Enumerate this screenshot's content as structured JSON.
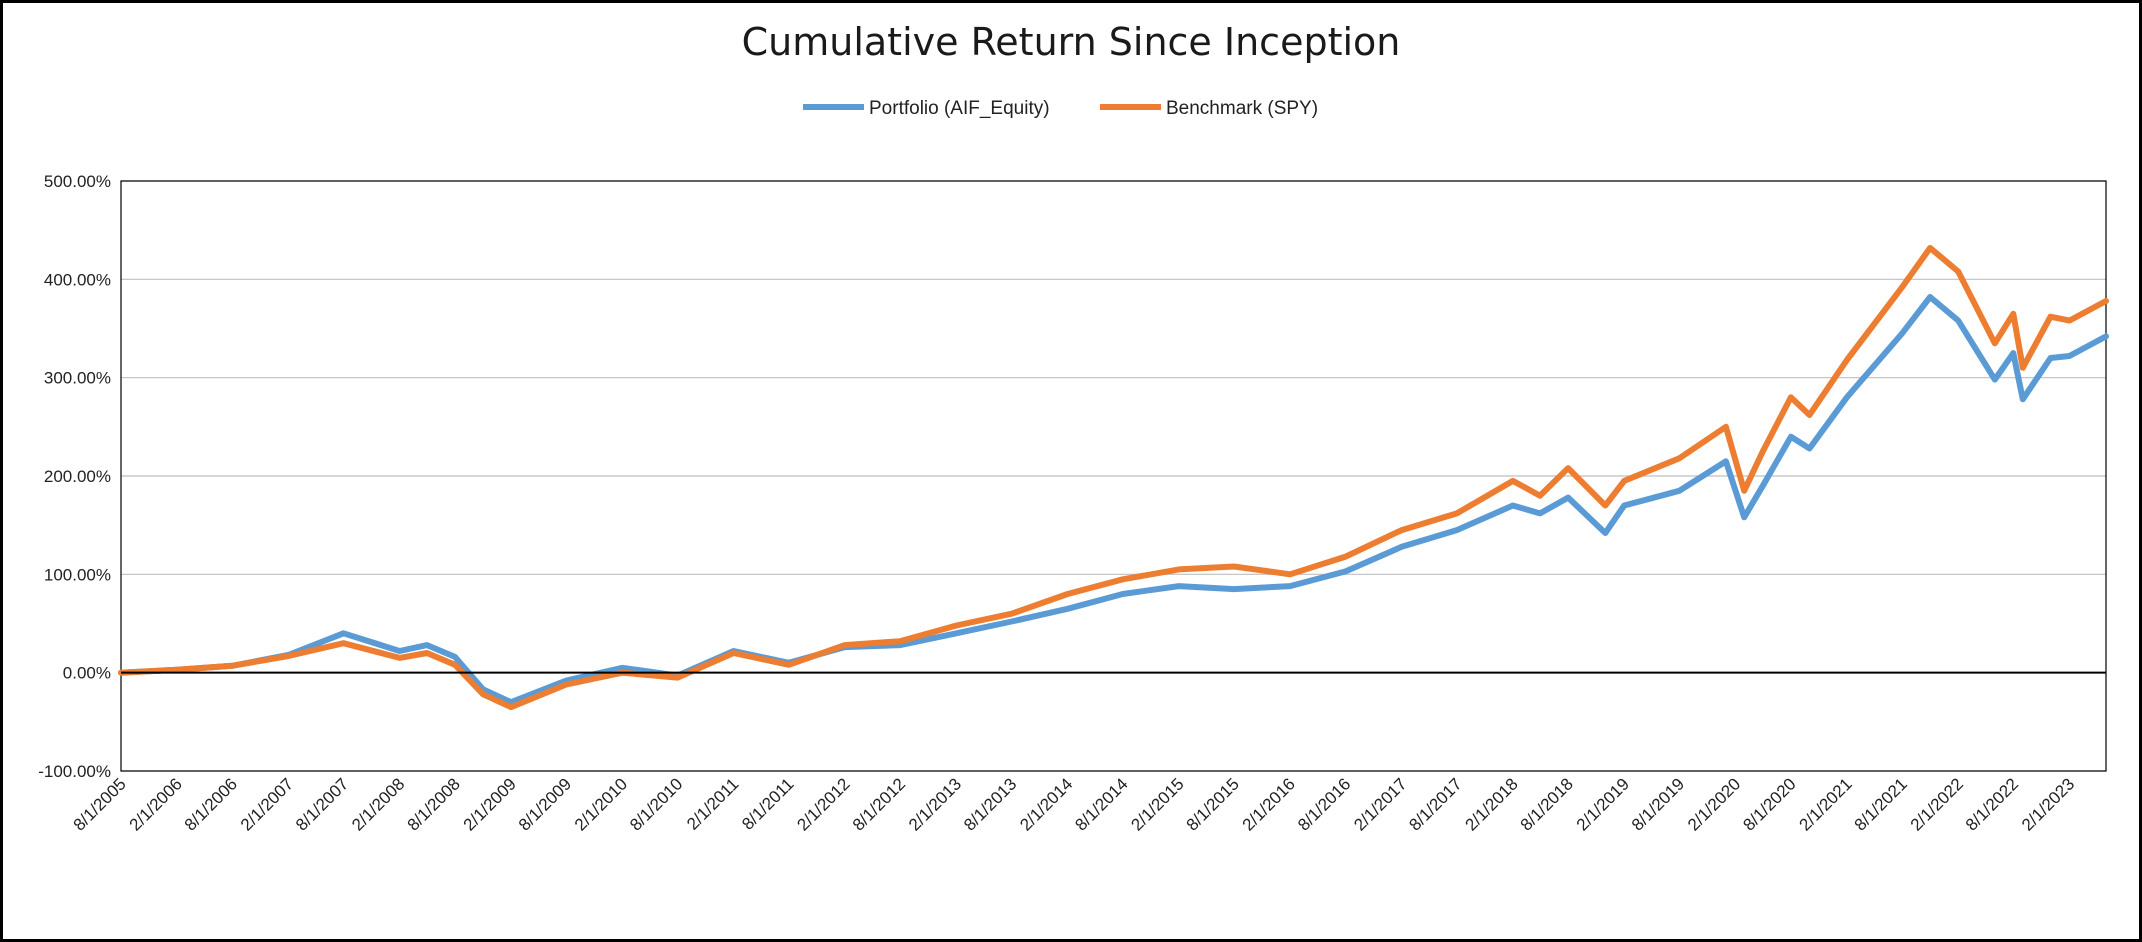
{
  "chart_data": {
    "type": "line",
    "title": "Cumulative Return Since Inception",
    "xlabel": "",
    "ylabel": "",
    "ylim": [
      -100,
      500
    ],
    "y_ticks": [
      "500.00%",
      "400.00%",
      "300.00%",
      "200.00%",
      "100.00%",
      "0.00%",
      "-100.00%"
    ],
    "y_tick_values": [
      500,
      400,
      300,
      200,
      100,
      0,
      -100
    ],
    "x_tick_labels": [
      "8/1/2005",
      "2/1/2006",
      "8/1/2006",
      "2/1/2007",
      "8/1/2007",
      "2/1/2008",
      "8/1/2008",
      "2/1/2009",
      "8/1/2009",
      "2/1/2010",
      "8/1/2010",
      "2/1/2011",
      "8/1/2011",
      "2/1/2012",
      "8/1/2012",
      "2/1/2013",
      "8/1/2013",
      "2/1/2014",
      "8/1/2014",
      "2/1/2015",
      "8/1/2015",
      "2/1/2016",
      "8/1/2016",
      "2/1/2017",
      "8/1/2017",
      "2/1/2018",
      "8/1/2018",
      "2/1/2019",
      "8/1/2019",
      "2/1/2020",
      "8/1/2020",
      "2/1/2021",
      "8/1/2021",
      "2/1/2022",
      "8/1/2022",
      "2/1/2023"
    ],
    "x_end": "6/1/2023",
    "grid": "horizontal",
    "legend_position": "top-center",
    "series": [
      {
        "name": "Portfolio (AIF_Equity)",
        "color": "#5B9BD5",
        "points": [
          [
            "8/1/2005",
            0
          ],
          [
            "2/1/2006",
            3
          ],
          [
            "8/1/2006",
            7
          ],
          [
            "2/1/2007",
            18
          ],
          [
            "8/1/2007",
            40
          ],
          [
            "2/1/2008",
            22
          ],
          [
            "5/1/2008",
            28
          ],
          [
            "8/1/2008",
            16
          ],
          [
            "11/1/2008",
            -17
          ],
          [
            "2/1/2009",
            -30
          ],
          [
            "8/1/2009",
            -8
          ],
          [
            "2/1/2010",
            5
          ],
          [
            "8/1/2010",
            -3
          ],
          [
            "2/1/2011",
            22
          ],
          [
            "8/1/2011",
            10
          ],
          [
            "2/1/2012",
            26
          ],
          [
            "8/1/2012",
            28
          ],
          [
            "2/1/2013",
            40
          ],
          [
            "8/1/2013",
            52
          ],
          [
            "2/1/2014",
            65
          ],
          [
            "8/1/2014",
            80
          ],
          [
            "2/1/2015",
            88
          ],
          [
            "8/1/2015",
            85
          ],
          [
            "2/1/2016",
            88
          ],
          [
            "8/1/2016",
            103
          ],
          [
            "2/1/2017",
            128
          ],
          [
            "8/1/2017",
            145
          ],
          [
            "2/1/2018",
            170
          ],
          [
            "5/1/2018",
            162
          ],
          [
            "8/1/2018",
            178
          ],
          [
            "12/1/2018",
            142
          ],
          [
            "2/1/2019",
            170
          ],
          [
            "8/1/2019",
            185
          ],
          [
            "1/1/2020",
            215
          ],
          [
            "3/1/2020",
            158
          ],
          [
            "5/1/2020",
            190
          ],
          [
            "8/1/2020",
            240
          ],
          [
            "10/1/2020",
            228
          ],
          [
            "2/1/2021",
            280
          ],
          [
            "8/1/2021",
            345
          ],
          [
            "11/1/2021",
            382
          ],
          [
            "2/1/2022",
            358
          ],
          [
            "6/1/2022",
            298
          ],
          [
            "8/1/2022",
            325
          ],
          [
            "9/1/2022",
            278
          ],
          [
            "12/1/2022",
            320
          ],
          [
            "2/1/2023",
            322
          ],
          [
            "6/1/2023",
            342
          ]
        ]
      },
      {
        "name": "Benchmark (SPY)",
        "color": "#ED7D31",
        "points": [
          [
            "8/1/2005",
            0
          ],
          [
            "2/1/2006",
            3
          ],
          [
            "8/1/2006",
            7
          ],
          [
            "2/1/2007",
            17
          ],
          [
            "8/1/2007",
            30
          ],
          [
            "2/1/2008",
            15
          ],
          [
            "5/1/2008",
            20
          ],
          [
            "8/1/2008",
            8
          ],
          [
            "11/1/2008",
            -22
          ],
          [
            "2/1/2009",
            -35
          ],
          [
            "8/1/2009",
            -12
          ],
          [
            "2/1/2010",
            0
          ],
          [
            "8/1/2010",
            -5
          ],
          [
            "2/1/2011",
            20
          ],
          [
            "8/1/2011",
            8
          ],
          [
            "2/1/2012",
            28
          ],
          [
            "8/1/2012",
            32
          ],
          [
            "2/1/2013",
            48
          ],
          [
            "8/1/2013",
            60
          ],
          [
            "2/1/2014",
            80
          ],
          [
            "8/1/2014",
            95
          ],
          [
            "2/1/2015",
            105
          ],
          [
            "8/1/2015",
            108
          ],
          [
            "2/1/2016",
            100
          ],
          [
            "8/1/2016",
            118
          ],
          [
            "2/1/2017",
            145
          ],
          [
            "8/1/2017",
            162
          ],
          [
            "2/1/2018",
            195
          ],
          [
            "5/1/2018",
            180
          ],
          [
            "8/1/2018",
            208
          ],
          [
            "12/1/2018",
            170
          ],
          [
            "2/1/2019",
            195
          ],
          [
            "8/1/2019",
            218
          ],
          [
            "1/1/2020",
            250
          ],
          [
            "3/1/2020",
            185
          ],
          [
            "5/1/2020",
            225
          ],
          [
            "8/1/2020",
            280
          ],
          [
            "10/1/2020",
            262
          ],
          [
            "2/1/2021",
            318
          ],
          [
            "8/1/2021",
            392
          ],
          [
            "11/1/2021",
            432
          ],
          [
            "2/1/2022",
            408
          ],
          [
            "6/1/2022",
            335
          ],
          [
            "8/1/2022",
            365
          ],
          [
            "9/1/2022",
            310
          ],
          [
            "12/1/2022",
            362
          ],
          [
            "2/1/2023",
            358
          ],
          [
            "6/1/2023",
            378
          ]
        ]
      }
    ]
  }
}
